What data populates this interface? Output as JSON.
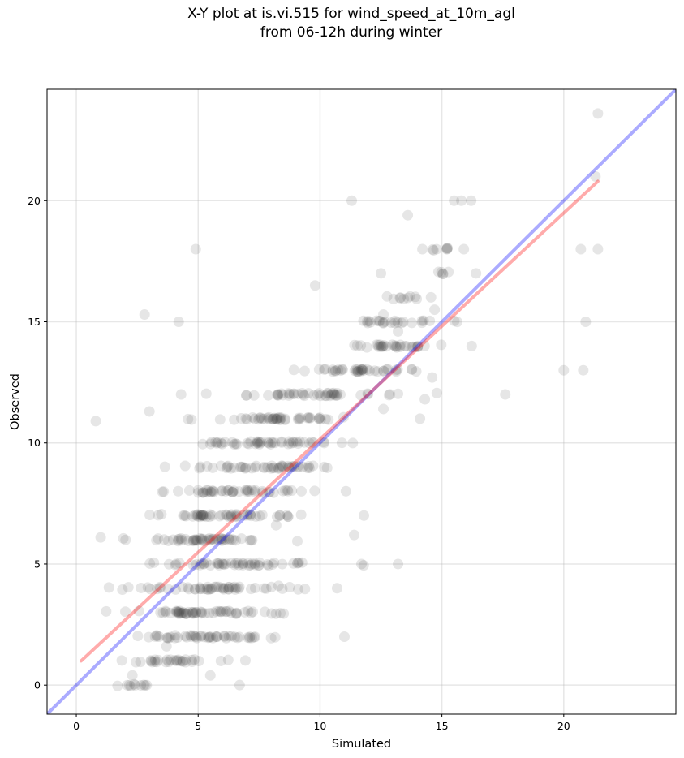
{
  "title_line1": "X-Y plot at is.vi.515 for wind_speed_at_10m_agl",
  "title_line2": "from 06-12h during winter",
  "chart_data": {
    "type": "scatter",
    "xlabel": "Simulated",
    "ylabel": "Observed",
    "xlim": [
      -1.2,
      24.6
    ],
    "ylim": [
      -1.2,
      24.6
    ],
    "xticks": [
      0,
      5,
      10,
      15,
      20
    ],
    "yticks": [
      0,
      5,
      10,
      15,
      20
    ],
    "grid": true,
    "point_color": "#404040",
    "identity_line": {
      "color": "#0000ff",
      "x": [
        -1.2,
        24.6
      ],
      "y": [
        -1.2,
        24.6
      ]
    },
    "fit_line": {
      "color": "#ff0000",
      "x": [
        0.2,
        21.4
      ],
      "y": [
        1.0,
        20.8
      ]
    },
    "bands": [
      {
        "y": 0,
        "x_from": 0.6,
        "x_to": 4.8,
        "n": 10
      },
      {
        "y": 1,
        "x_from": 0.6,
        "x_to": 7.5,
        "n": 30
      },
      {
        "y": 2,
        "x_from": 0.4,
        "x_to": 10.9,
        "n": 48
      },
      {
        "y": 3,
        "x_from": 0.4,
        "x_to": 10.7,
        "n": 58
      },
      {
        "y": 4,
        "x_from": 0.3,
        "x_to": 11.0,
        "n": 52
      },
      {
        "y": 5,
        "x_from": 0.4,
        "x_to": 13.3,
        "n": 50
      },
      {
        "y": 6,
        "x_from": 0.6,
        "x_to": 10.3,
        "n": 50
      },
      {
        "y": 7,
        "x_from": 0.9,
        "x_to": 11.3,
        "n": 52
      },
      {
        "y": 8,
        "x_from": 0.7,
        "x_to": 12.5,
        "n": 48
      },
      {
        "y": 9,
        "x_from": 1.2,
        "x_to": 13.8,
        "n": 48
      },
      {
        "y": 10,
        "x_from": 1.9,
        "x_to": 13.5,
        "n": 48
      },
      {
        "y": 11,
        "x_from": 2.9,
        "x_to": 13.5,
        "n": 46
      },
      {
        "y": 12,
        "x_from": 3.4,
        "x_to": 16.3,
        "n": 46
      },
      {
        "y": 13,
        "x_from": 7.3,
        "x_to": 15.7,
        "n": 40
      },
      {
        "y": 14,
        "x_from": 9.5,
        "x_to": 16.4,
        "n": 32
      },
      {
        "y": 15,
        "x_from": 9.2,
        "x_to": 16.6,
        "n": 24
      },
      {
        "y": 16,
        "x_from": 12.1,
        "x_to": 15.4,
        "n": 10
      },
      {
        "y": 17,
        "x_from": 14.0,
        "x_to": 16.1,
        "n": 5
      },
      {
        "y": 18,
        "x_from": 13.8,
        "x_to": 15.8,
        "n": 6
      }
    ],
    "points": [
      [
        0.8,
        10.9
      ],
      [
        2.8,
        15.3
      ],
      [
        4.2,
        15.0
      ],
      [
        4.9,
        18.0
      ],
      [
        9.8,
        16.5
      ],
      [
        11.3,
        20.0
      ],
      [
        13.6,
        19.4
      ],
      [
        15.5,
        20.0
      ],
      [
        15.8,
        20.0
      ],
      [
        16.2,
        20.0
      ],
      [
        14.2,
        18.0
      ],
      [
        15.2,
        18.0
      ],
      [
        15.9,
        18.0
      ],
      [
        12.5,
        17.0
      ],
      [
        16.4,
        17.0
      ],
      [
        17.6,
        12.0
      ],
      [
        20.0,
        13.0
      ],
      [
        20.8,
        13.0
      ],
      [
        20.9,
        15.0
      ],
      [
        20.7,
        18.0
      ],
      [
        21.4,
        18.0
      ],
      [
        21.3,
        21.0
      ],
      [
        21.4,
        23.6
      ],
      [
        13.2,
        5.0
      ],
      [
        11.7,
        5.0
      ],
      [
        10.7,
        4.0
      ],
      [
        11.0,
        2.0
      ],
      [
        6.7,
        0.0
      ],
      [
        14.1,
        11.0
      ],
      [
        11.8,
        7.0
      ],
      [
        1.0,
        6.1
      ],
      [
        8.3,
        4.1
      ],
      [
        2.3,
        0.4
      ],
      [
        5.5,
        0.4
      ],
      [
        3.7,
        1.6
      ],
      [
        4.3,
        12.0
      ],
      [
        3.0,
        11.3
      ],
      [
        11.4,
        6.2
      ],
      [
        12.6,
        11.4
      ],
      [
        14.3,
        11.8
      ],
      [
        12.6,
        15.3
      ],
      [
        14.6,
        12.7
      ],
      [
        13.2,
        14.6
      ],
      [
        14.7,
        15.5
      ],
      [
        8.2,
        6.6
      ]
    ]
  }
}
